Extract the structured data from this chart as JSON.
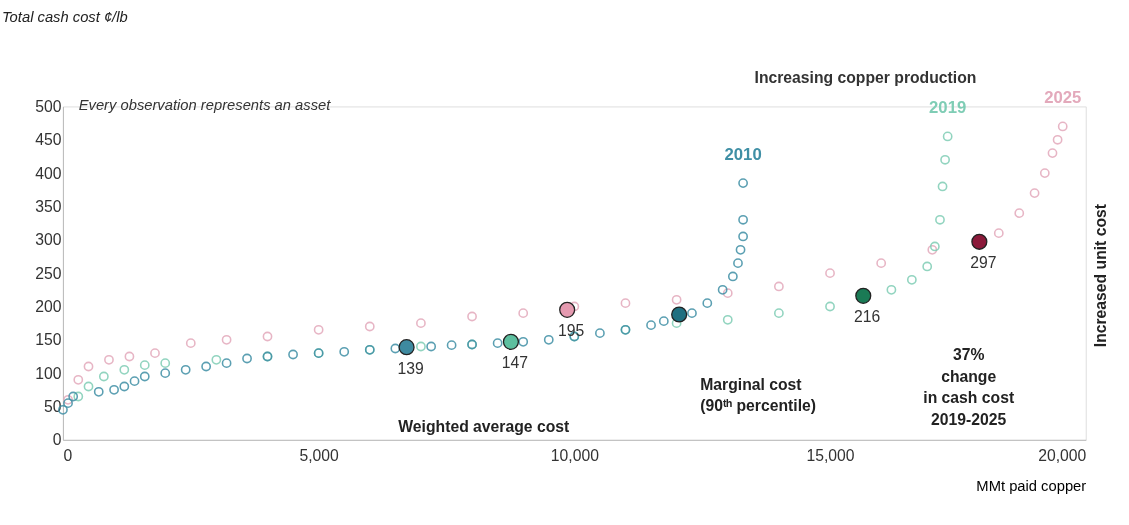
{
  "chart_data": {
    "type": "scatter",
    "xlabel": "MMt paid copper",
    "xlim": [
      0,
      20000
    ],
    "xticks": [
      {
        "value": 0,
        "label": "0"
      },
      {
        "value": 5000,
        "label": "5,000"
      },
      {
        "value": 10000,
        "label": "10,000"
      },
      {
        "value": 15000,
        "label": "15,000"
      },
      {
        "value": 20000,
        "label": "20,000"
      }
    ],
    "ylim": [
      0,
      500
    ],
    "yticks": [
      0,
      50,
      100,
      150,
      200,
      250,
      300,
      350,
      400,
      450,
      500
    ],
    "grid": false,
    "legend": false,
    "marker": "circle",
    "series": [
      {
        "name": "2025",
        "color": "#e3a9bb",
        "x": [
          100,
          300,
          500,
          900,
          1300,
          1800,
          2500,
          3200,
          4000,
          5000,
          6000,
          7000,
          8000,
          9000,
          10000,
          11000,
          12000,
          13000,
          14000,
          15000,
          16000,
          17000,
          18300,
          18700,
          19000,
          19200,
          19350,
          19450,
          19550
        ],
        "values": [
          60,
          90,
          110,
          120,
          125,
          130,
          145,
          150,
          155,
          165,
          170,
          175,
          185,
          190,
          200,
          205,
          210,
          220,
          230,
          250,
          265,
          285,
          310,
          340,
          370,
          400,
          430,
          450,
          470
        ]
      },
      {
        "name": "2019",
        "color": "#7fcdb5",
        "x": [
          300,
          500,
          800,
          1200,
          1600,
          2000,
          3000,
          4000,
          5000,
          6000,
          7000,
          8000,
          10000,
          11000,
          12000,
          13000,
          14000,
          15000,
          16200,
          16600,
          16900,
          17050,
          17150,
          17200,
          17250,
          17300
        ],
        "values": [
          65,
          80,
          95,
          105,
          112,
          115,
          120,
          125,
          130,
          135,
          140,
          143,
          155,
          165,
          175,
          180,
          190,
          200,
          225,
          240,
          260,
          290,
          330,
          380,
          420,
          455
        ]
      },
      {
        "name": "2010",
        "color": "#3f8fa5",
        "x": [
          0,
          100,
          200,
          700,
          1000,
          1200,
          1400,
          1600,
          2000,
          2400,
          2800,
          3200,
          3600,
          4000,
          4500,
          5000,
          5500,
          6000,
          6500,
          7200,
          7600,
          8000,
          8500,
          9000,
          9500,
          10000,
          10500,
          11000,
          11500,
          11750,
          12300,
          12600,
          12900,
          13100,
          13200,
          13250,
          13300,
          13300,
          13300
        ],
        "values": [
          45,
          55,
          65,
          72,
          75,
          80,
          88,
          95,
          100,
          105,
          110,
          115,
          122,
          125,
          128,
          130,
          132,
          135,
          137,
          140,
          142,
          143,
          145,
          147,
          150,
          155,
          160,
          165,
          172,
          178,
          190,
          205,
          225,
          245,
          265,
          285,
          305,
          330,
          385
        ]
      },
      {
        "color": "#3e8aa0",
        "x": [
          6720
        ],
        "values": [
          139
        ]
      },
      {
        "color": "#5dbf9f",
        "x": [
          8760
        ],
        "values": [
          147
        ]
      },
      {
        "color": "#e59ab0",
        "x": [
          9860
        ],
        "values": [
          195
        ]
      },
      {
        "color": "#1f6f80",
        "x": [
          12050
        ],
        "values": [
          188
        ]
      },
      {
        "color": "#1a7a55",
        "x": [
          15650
        ],
        "values": [
          216
        ]
      },
      {
        "color": "#8b1a3a",
        "x": [
          17920
        ],
        "values": [
          297
        ]
      }
    ],
    "annotations": [
      "Total cash cost ¢/lb",
      "Every observation represents an asset",
      "Increasing copper production",
      "Increased unit cost",
      "Weighted average cost",
      "Marginal cost\n(90ᵗʰ percentile)",
      "37%\nchange\nin cash cost\n2019-2025",
      {
        "text": "139",
        "x": 6720,
        "y": 139
      },
      {
        "text": "147",
        "x": 8760,
        "y": 147
      },
      {
        "text": "195",
        "x": 9860,
        "y": 195
      },
      {
        "text": "216",
        "x": 15650,
        "y": 216
      },
      {
        "text": "297",
        "x": 17920,
        "y": 297
      }
    ]
  }
}
